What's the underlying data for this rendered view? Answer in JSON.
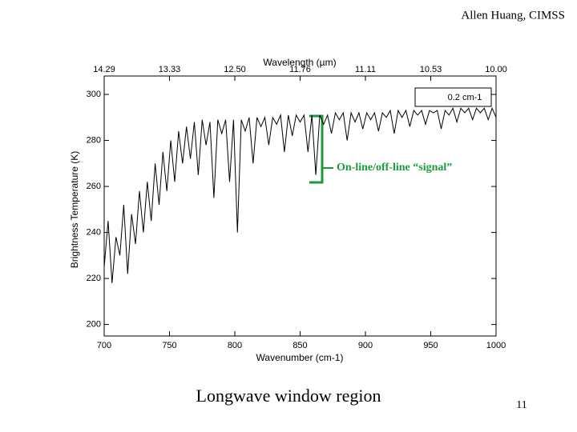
{
  "header": {
    "credit": "Allen Huang, CIMSS"
  },
  "footer": {
    "title": "Longwave window region",
    "page": "11"
  },
  "chart_data": {
    "type": "line",
    "color": "#000000",
    "x_title": "Wavenumber (cm-1)",
    "y_title": "Brightness Temperature (K)",
    "x2_title": "Wavelength (µm)",
    "annotations": {
      "resolution": "0.2 cm-1",
      "signal": "On-line/off-line “signal”"
    },
    "signal_color": "#1a9a3a",
    "xlim": [
      700,
      1000
    ],
    "ylim": [
      195,
      308
    ],
    "xticks": [
      700,
      750,
      800,
      850,
      900,
      950,
      1000
    ],
    "yticks": [
      200,
      220,
      240,
      260,
      280,
      300
    ],
    "x2ticks": [
      {
        "value": 700,
        "label": "14.29"
      },
      {
        "value": 750,
        "label": "13.33"
      },
      {
        "value": 800,
        "label": "12.50"
      },
      {
        "value": 850,
        "label": "11.76"
      },
      {
        "value": 900,
        "label": "11.11"
      },
      {
        "value": 950,
        "label": "10.53"
      },
      {
        "value": 1000,
        "label": "10.00"
      }
    ],
    "x": [
      700,
      703,
      706,
      709,
      712,
      715,
      718,
      721,
      724,
      727,
      730,
      733,
      736,
      739,
      742,
      745,
      748,
      751,
      754,
      757,
      760,
      763,
      766,
      769,
      772,
      775,
      778,
      781,
      784,
      787,
      790,
      793,
      796,
      799,
      802,
      805,
      808,
      811,
      814,
      817,
      820,
      823,
      826,
      829,
      832,
      835,
      838,
      841,
      844,
      847,
      850,
      853,
      856,
      859,
      862,
      865,
      868,
      871,
      874,
      877,
      880,
      883,
      886,
      889,
      892,
      895,
      898,
      901,
      904,
      907,
      910,
      913,
      916,
      919,
      922,
      925,
      928,
      931,
      934,
      937,
      940,
      943,
      946,
      949,
      952,
      955,
      958,
      961,
      964,
      967,
      970,
      973,
      976,
      979,
      982,
      985,
      988,
      991,
      994,
      997,
      1000
    ],
    "values": [
      225,
      245,
      218,
      238,
      230,
      252,
      222,
      248,
      235,
      258,
      240,
      262,
      245,
      270,
      252,
      275,
      258,
      280,
      262,
      284,
      270,
      286,
      272,
      288,
      265,
      289,
      278,
      288,
      255,
      289,
      283,
      289,
      262,
      289,
      240,
      289,
      284,
      290,
      270,
      290,
      286,
      290,
      278,
      290,
      287,
      291,
      275,
      291,
      282,
      291,
      288,
      291,
      275,
      291,
      265,
      291,
      287,
      291,
      283,
      292,
      289,
      292,
      280,
      292,
      288,
      292,
      285,
      292,
      289,
      292,
      284,
      292,
      290,
      293,
      283,
      293,
      290,
      293,
      286,
      293,
      291,
      293,
      287,
      293,
      292,
      293,
      285,
      293,
      291,
      294,
      288,
      294,
      292,
      294,
      289,
      294,
      292,
      294,
      289,
      294,
      290
    ]
  }
}
